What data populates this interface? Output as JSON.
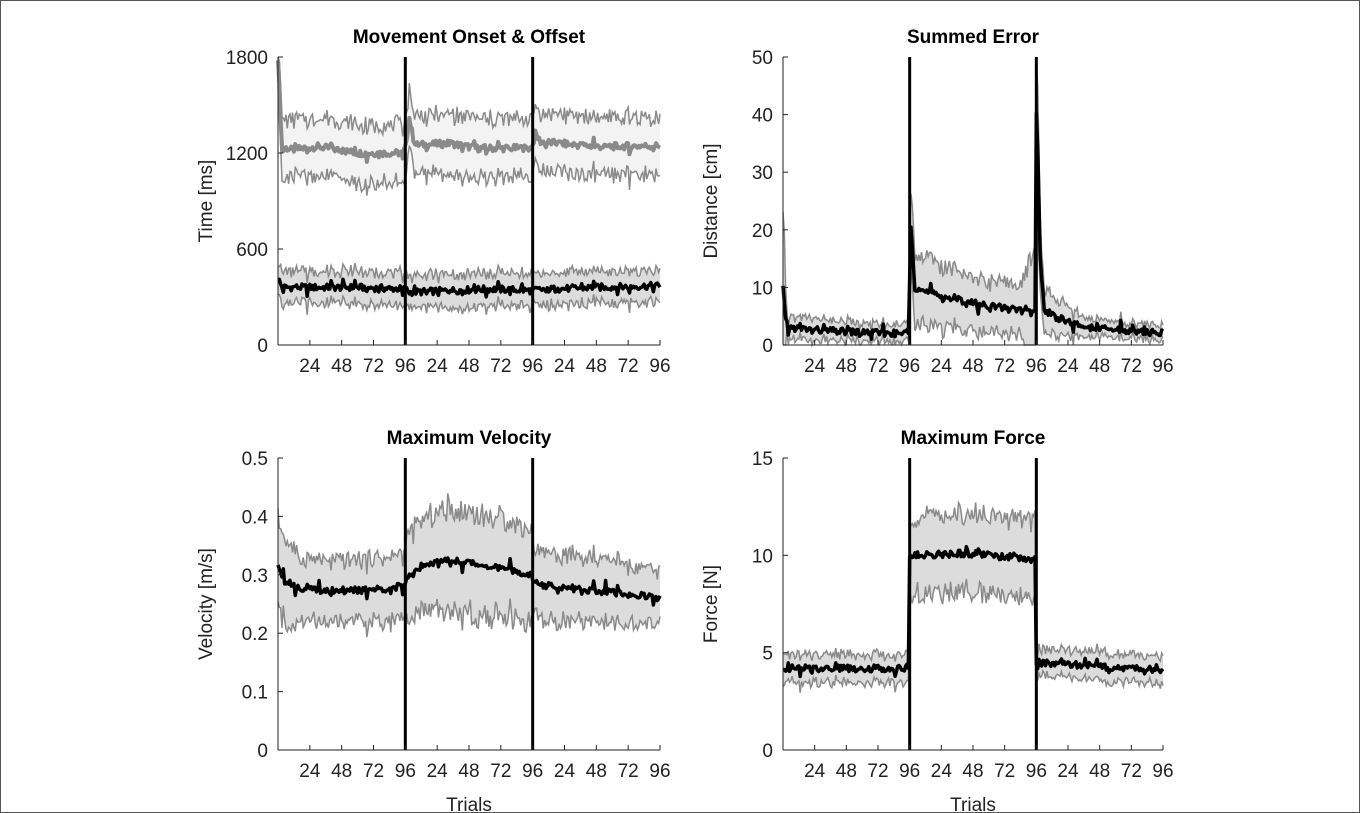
{
  "figure": {
    "background": "#ffffff",
    "line_color": "#000000",
    "band_fill": "#dcdcdc",
    "band_edge": "#8a8a8a",
    "onset_fill": "#f3f3f3",
    "offset_line": "#8a8a8a"
  },
  "chart_data": [
    {
      "id": "onset-offset",
      "type": "line",
      "title": "Movement Onset & Offset",
      "xlabel": "",
      "ylabel": "Time [ms]",
      "xlim": [
        0,
        288
      ],
      "ylim": [
        0,
        1800
      ],
      "yticks": [
        0,
        600,
        1200,
        1800
      ],
      "xticks": [
        {
          "x": 24,
          "label": "24"
        },
        {
          "x": 48,
          "label": "48"
        },
        {
          "x": 72,
          "label": "72"
        },
        {
          "x": 96,
          "label": "96"
        },
        {
          "x": 120,
          "label": "24"
        },
        {
          "x": 144,
          "label": "48"
        },
        {
          "x": 168,
          "label": "72"
        },
        {
          "x": 192,
          "label": "96"
        },
        {
          "x": 216,
          "label": "24"
        },
        {
          "x": 240,
          "label": "48"
        },
        {
          "x": 264,
          "label": "72"
        },
        {
          "x": 288,
          "label": "96"
        }
      ],
      "block_boundaries": [
        96,
        192
      ],
      "series": [
        {
          "keypoints": [
            [
              0,
              1800
            ],
            [
              3,
              1240
            ],
            [
              10,
              1220
            ],
            [
              30,
              1240
            ],
            [
              60,
              1200
            ],
            [
              94,
              1200
            ],
            [
              96,
              1230
            ],
            [
              99,
              1420
            ],
            [
              103,
              1250
            ],
            [
              130,
              1260
            ],
            [
              150,
              1230
            ],
            [
              190,
              1230
            ],
            [
              192,
              1250
            ],
            [
              194,
              1320
            ],
            [
              198,
              1270
            ],
            [
              240,
              1240
            ],
            [
              288,
              1245
            ]
          ],
          "spread": 180,
          "style": "onset"
        },
        {
          "keypoints": [
            [
              0,
              420
            ],
            [
              3,
              360
            ],
            [
              30,
              360
            ],
            [
              60,
              360
            ],
            [
              96,
              350
            ],
            [
              99,
              330
            ],
            [
              130,
              340
            ],
            [
              160,
              350
            ],
            [
              192,
              340
            ],
            [
              194,
              345
            ],
            [
              240,
              360
            ],
            [
              288,
              370
            ]
          ],
          "spread": 100,
          "style": "offset"
        }
      ]
    },
    {
      "id": "summed-error",
      "type": "line",
      "title": "Summed Error",
      "xlabel": "",
      "ylabel": "Distance [cm]",
      "xlim": [
        0,
        288
      ],
      "ylim": [
        0,
        50
      ],
      "yticks": [
        0,
        10,
        20,
        30,
        40,
        50
      ],
      "xticks": [
        {
          "x": 24,
          "label": "24"
        },
        {
          "x": 48,
          "label": "48"
        },
        {
          "x": 72,
          "label": "72"
        },
        {
          "x": 96,
          "label": "96"
        },
        {
          "x": 120,
          "label": "24"
        },
        {
          "x": 144,
          "label": "48"
        },
        {
          "x": 168,
          "label": "72"
        },
        {
          "x": 192,
          "label": "96"
        },
        {
          "x": 216,
          "label": "24"
        },
        {
          "x": 240,
          "label": "48"
        },
        {
          "x": 264,
          "label": "72"
        },
        {
          "x": 288,
          "label": "96"
        }
      ],
      "block_boundaries": [
        96,
        192
      ],
      "series": [
        {
          "keypoints": [
            [
              0,
              10
            ],
            [
              2,
              4
            ],
            [
              6,
              3
            ],
            [
              30,
              2.5
            ],
            [
              60,
              2.2
            ],
            [
              95,
              2
            ],
            [
              96,
              12
            ],
            [
              97,
              21
            ],
            [
              100,
              10
            ],
            [
              110,
              9
            ],
            [
              130,
              8
            ],
            [
              150,
              7
            ],
            [
              180,
              6
            ],
            [
              191,
              5.5
            ],
            [
              192,
              40
            ],
            [
              193,
              34
            ],
            [
              195,
              15
            ],
            [
              198,
              6
            ],
            [
              210,
              4.5
            ],
            [
              230,
              3
            ],
            [
              260,
              2.5
            ],
            [
              288,
              2
            ]
          ],
          "spread_keypoints": [
            [
              0,
              14
            ],
            [
              3,
              2
            ],
            [
              60,
              1.5
            ],
            [
              95,
              1.5
            ],
            [
              96,
              8
            ],
            [
              100,
              6
            ],
            [
              130,
              5
            ],
            [
              180,
              4
            ],
            [
              192,
              12
            ],
            [
              196,
              4
            ],
            [
              230,
              1.5
            ],
            [
              288,
              1.2
            ]
          ],
          "style": "band"
        }
      ]
    },
    {
      "id": "max-velocity",
      "type": "line",
      "title": "Maximum Velocity",
      "xlabel": "Trials",
      "ylabel": "Velocity [m/s]",
      "xlim": [
        0,
        288
      ],
      "ylim": [
        0,
        0.5
      ],
      "yticks": [
        0,
        0.1,
        0.2,
        0.3,
        0.4,
        0.5
      ],
      "xticks": [
        {
          "x": 24,
          "label": "24"
        },
        {
          "x": 48,
          "label": "48"
        },
        {
          "x": 72,
          "label": "72"
        },
        {
          "x": 96,
          "label": "96"
        },
        {
          "x": 120,
          "label": "24"
        },
        {
          "x": 144,
          "label": "48"
        },
        {
          "x": 168,
          "label": "72"
        },
        {
          "x": 192,
          "label": "96"
        },
        {
          "x": 216,
          "label": "24"
        },
        {
          "x": 240,
          "label": "48"
        },
        {
          "x": 264,
          "label": "72"
        },
        {
          "x": 288,
          "label": "96"
        }
      ],
      "block_boundaries": [
        96,
        192
      ],
      "series": [
        {
          "keypoints": [
            [
              0,
              0.32
            ],
            [
              5,
              0.29
            ],
            [
              20,
              0.275
            ],
            [
              60,
              0.272
            ],
            [
              95,
              0.28
            ],
            [
              96,
              0.29
            ],
            [
              110,
              0.32
            ],
            [
              130,
              0.325
            ],
            [
              160,
              0.315
            ],
            [
              191,
              0.3
            ],
            [
              192,
              0.285
            ],
            [
              210,
              0.28
            ],
            [
              250,
              0.27
            ],
            [
              288,
              0.26
            ]
          ],
          "spread_keypoints": [
            [
              0,
              0.08
            ],
            [
              20,
              0.05
            ],
            [
              95,
              0.055
            ],
            [
              96,
              0.07
            ],
            [
              130,
              0.09
            ],
            [
              191,
              0.08
            ],
            [
              192,
              0.06
            ],
            [
              288,
              0.045
            ]
          ],
          "style": "band"
        }
      ]
    },
    {
      "id": "max-force",
      "type": "line",
      "title": "Maximum Force",
      "xlabel": "Trials",
      "ylabel": "Force [N]",
      "xlim": [
        0,
        288
      ],
      "ylim": [
        0,
        15
      ],
      "yticks": [
        0,
        5,
        10,
        15
      ],
      "xticks": [
        {
          "x": 24,
          "label": "24"
        },
        {
          "x": 48,
          "label": "48"
        },
        {
          "x": 72,
          "label": "72"
        },
        {
          "x": 96,
          "label": "96"
        },
        {
          "x": 120,
          "label": "24"
        },
        {
          "x": 144,
          "label": "48"
        },
        {
          "x": 168,
          "label": "72"
        },
        {
          "x": 192,
          "label": "96"
        },
        {
          "x": 216,
          "label": "24"
        },
        {
          "x": 240,
          "label": "48"
        },
        {
          "x": 264,
          "label": "72"
        },
        {
          "x": 288,
          "label": "96"
        }
      ],
      "block_boundaries": [
        96,
        192
      ],
      "series": [
        {
          "keypoints": [
            [
              0,
              4.2
            ],
            [
              48,
              4.2
            ],
            [
              95,
              4.2
            ],
            [
              96,
              10
            ],
            [
              140,
              10.1
            ],
            [
              191,
              9.8
            ],
            [
              192,
              4.5
            ],
            [
              240,
              4.3
            ],
            [
              288,
              4.1
            ]
          ],
          "spread_keypoints": [
            [
              0,
              0.7
            ],
            [
              95,
              0.7
            ],
            [
              96,
              2
            ],
            [
              191,
              2
            ],
            [
              192,
              0.7
            ],
            [
              288,
              0.7
            ]
          ],
          "style": "band"
        }
      ]
    }
  ]
}
